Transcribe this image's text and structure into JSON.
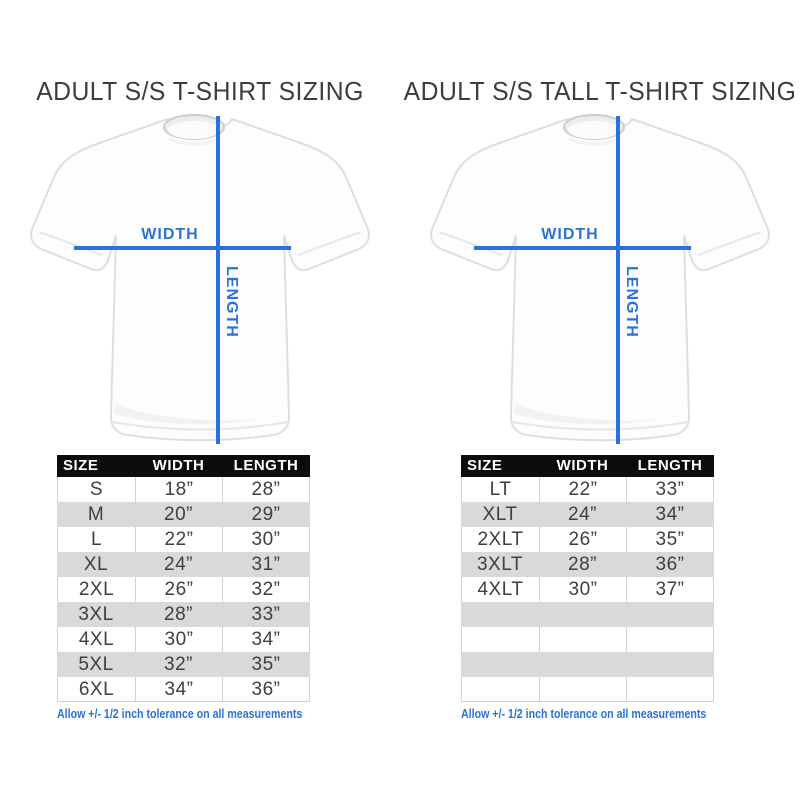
{
  "colors": {
    "accent_blue": "#2b72d8",
    "title_color": "#3d3d3d",
    "header_bg": "#0c0c0c",
    "header_text": "#ffffff",
    "row_alt": "#d9d9d9",
    "cell_border": "#d2d2d2",
    "cell_text": "#3f3f3f",
    "page_bg": "#ffffff"
  },
  "panels": [
    {
      "title": "ADULT S/S T-SHIRT SIZING",
      "diagram": {
        "width_label": "WIDTH",
        "length_label": "LENGTH"
      },
      "table": {
        "headers": [
          "SIZE",
          "WIDTH",
          "LENGTH"
        ],
        "rows": [
          [
            "S",
            "18”",
            "28”"
          ],
          [
            "M",
            "20”",
            "29”"
          ],
          [
            "L",
            "22”",
            "30”"
          ],
          [
            "XL",
            "24”",
            "31”"
          ],
          [
            "2XL",
            "26”",
            "32”"
          ],
          [
            "3XL",
            "28”",
            "33”"
          ],
          [
            "4XL",
            "30”",
            "34”"
          ],
          [
            "5XL",
            "32”",
            "35”"
          ],
          [
            "6XL",
            "34”",
            "36”"
          ]
        ]
      },
      "footnote": "Allow +/- 1/2 inch tolerance on all measurements"
    },
    {
      "title": "ADULT S/S TALL T-SHIRT SIZING",
      "diagram": {
        "width_label": "WIDTH",
        "length_label": "LENGTH"
      },
      "table": {
        "headers": [
          "SIZE",
          "WIDTH",
          "LENGTH"
        ],
        "rows": [
          [
            "LT",
            "22”",
            "33”"
          ],
          [
            "XLT",
            "24”",
            "34”"
          ],
          [
            "2XLT",
            "26”",
            "35”"
          ],
          [
            "3XLT",
            "28”",
            "36”"
          ],
          [
            "4XLT",
            "30”",
            "37”"
          ],
          [
            "",
            "",
            ""
          ],
          [
            "",
            "",
            ""
          ],
          [
            "",
            "",
            ""
          ],
          [
            "",
            "",
            ""
          ]
        ]
      },
      "footnote": "Allow +/- 1/2 inch tolerance on all measurements"
    }
  ]
}
